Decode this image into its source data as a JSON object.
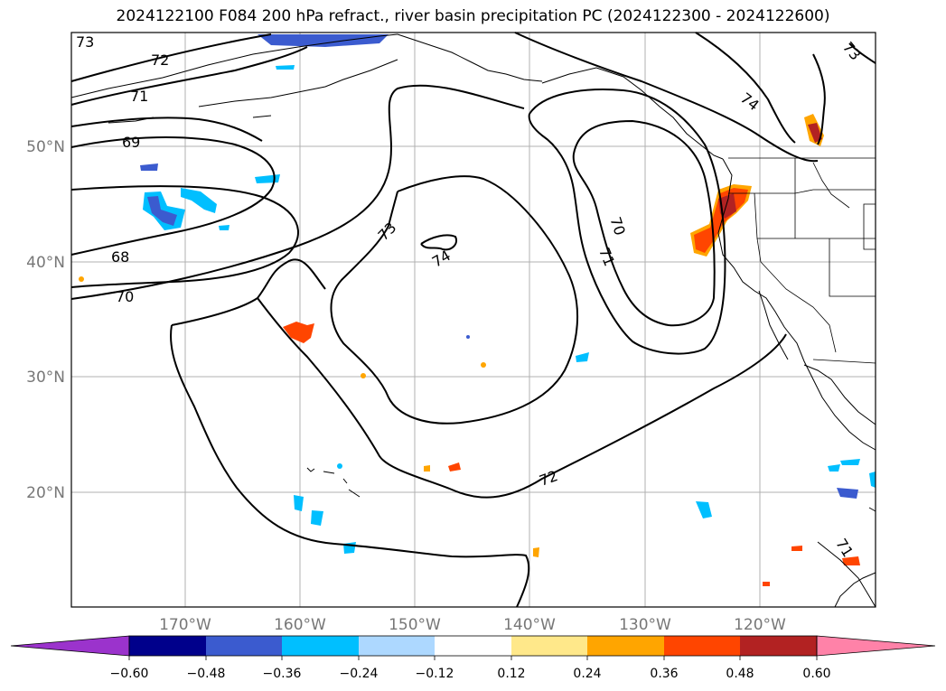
{
  "title": "2024122100 F084 200 hPa refract., river basin precipitation PC (2024122300 - 2024122600)",
  "map": {
    "lat_labels": [
      "50°N",
      "40°N",
      "30°N",
      "20°N"
    ],
    "lon_labels": [
      "170°W",
      "160°W",
      "150°W",
      "140°W",
      "130°W",
      "120°W"
    ],
    "contour_labels": [
      "73",
      "72",
      "71",
      "69",
      "68",
      "70",
      "73",
      "74",
      "70",
      "71",
      "72",
      "74",
      "73",
      "71"
    ]
  },
  "colorbar": {
    "ticks": [
      "−0.60",
      "−0.48",
      "−0.36",
      "−0.24",
      "−0.12",
      "0.12",
      "0.24",
      "0.36",
      "0.48",
      "0.60"
    ],
    "colors": [
      "#9b33cc",
      "#00008b",
      "#3b5bcf",
      "#00bfff",
      "#add8ff",
      "#ffffff",
      "#ffe88a",
      "#ffa500",
      "#ff4500",
      "#b22222",
      "#ff82a8"
    ]
  }
}
